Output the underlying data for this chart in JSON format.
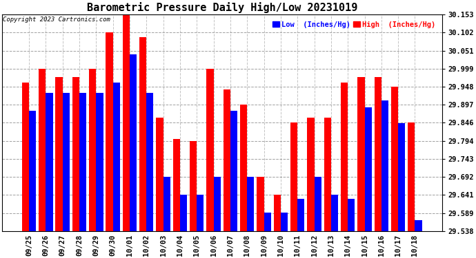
{
  "title": "Barometric Pressure Daily High/Low 20231019",
  "copyright": "Copyright 2023 Cartronics.com",
  "legend_low": "Low  (Inches/Hg)",
  "legend_high": "High  (Inches/Hg)",
  "dates": [
    "09/25",
    "09/26",
    "09/27",
    "09/28",
    "09/29",
    "09/30",
    "10/01",
    "10/02",
    "10/03",
    "10/04",
    "10/05",
    "10/06",
    "10/07",
    "10/08",
    "10/09",
    "10/10",
    "10/11",
    "10/12",
    "10/13",
    "10/14",
    "10/15",
    "10/16",
    "10/17",
    "10/18"
  ],
  "low_values": [
    29.88,
    29.93,
    29.93,
    29.93,
    29.93,
    29.96,
    30.04,
    29.93,
    29.692,
    29.641,
    29.641,
    29.692,
    29.88,
    29.692,
    29.59,
    29.59,
    29.63,
    29.692,
    29.641,
    29.63,
    29.89,
    29.91,
    29.845,
    29.57
  ],
  "high_values": [
    29.96,
    29.999,
    29.975,
    29.975,
    29.999,
    30.102,
    30.153,
    30.09,
    29.86,
    29.8,
    29.795,
    29.999,
    29.94,
    29.897,
    29.692,
    29.641,
    29.846,
    29.86,
    29.86,
    29.96,
    29.975,
    29.975,
    29.948,
    29.846
  ],
  "ylim_min": 29.538,
  "ylim_max": 30.153,
  "yticks": [
    29.538,
    29.589,
    29.641,
    29.692,
    29.743,
    29.794,
    29.846,
    29.897,
    29.948,
    29.999,
    30.051,
    30.102,
    30.153
  ],
  "color_low": "#0000ff",
  "color_high": "#ff0000",
  "background_color": "#ffffff",
  "grid_color": "#888888",
  "title_fontsize": 11,
  "tick_fontsize": 7.5,
  "bar_width": 0.42
}
